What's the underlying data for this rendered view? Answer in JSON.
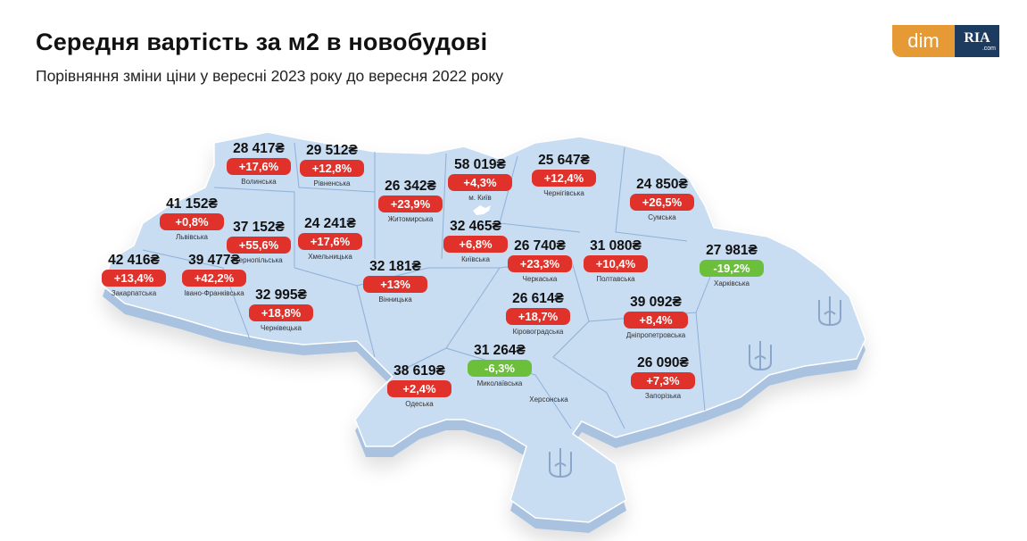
{
  "header": {
    "title": "Середня вартість за м2 в новобудові",
    "subtitle": "Порівняння зміни ціни у вересні 2023 року до вересня 2022 року"
  },
  "logo": {
    "dim": "dim",
    "ria": "RIA",
    "ria_suffix": ".com"
  },
  "colors": {
    "increase": "#e0322b",
    "decrease": "#6cbf3a",
    "map_fill": "#c8dcf2",
    "map_side": "#a9c2e0",
    "map_border": "#8fb0d8"
  },
  "regions": [
    {
      "name": "Волинська",
      "price": "28 417₴",
      "change": "+17,6%",
      "direction": "up"
    },
    {
      "name": "Рівненська",
      "price": "29 512₴",
      "change": "+12,8%",
      "direction": "up"
    },
    {
      "name": "Житомирська",
      "price": "26 342₴",
      "change": "+23,9%",
      "direction": "up"
    },
    {
      "name": "м. Київ",
      "price": "58 019₴",
      "change": "+4,3%",
      "direction": "up"
    },
    {
      "name": "Чернігівська",
      "price": "25 647₴",
      "change": "+12,4%",
      "direction": "up"
    },
    {
      "name": "Сумська",
      "price": "24 850₴",
      "change": "+26,5%",
      "direction": "up"
    },
    {
      "name": "Львівська",
      "price": "41 152₴",
      "change": "+0,8%",
      "direction": "up"
    },
    {
      "name": "Тернопільська",
      "price": "37 152₴",
      "change": "+55,6%",
      "direction": "up"
    },
    {
      "name": "Хмельницька",
      "price": "24 241₴",
      "change": "+17,6%",
      "direction": "up"
    },
    {
      "name": "Київська",
      "price": "32 465₴",
      "change": "+6,8%",
      "direction": "up"
    },
    {
      "name": "Черкаська",
      "price": "26 740₴",
      "change": "+23,3%",
      "direction": "up"
    },
    {
      "name": "Полтавська",
      "price": "31 080₴",
      "change": "+10,4%",
      "direction": "up"
    },
    {
      "name": "Харківська",
      "price": "27 981₴",
      "change": "-19,2%",
      "direction": "down"
    },
    {
      "name": "Закарпатська",
      "price": "42 416₴",
      "change": "+13,4%",
      "direction": "up"
    },
    {
      "name": "Івано-Франківська",
      "price": "39 477₴",
      "change": "+42,2%",
      "direction": "up"
    },
    {
      "name": "Вінницька",
      "price": "32 181₴",
      "change": "+13%",
      "direction": "up"
    },
    {
      "name": "Чернівецька",
      "price": "32 995₴",
      "change": "+18,8%",
      "direction": "up"
    },
    {
      "name": "Кіровоградська",
      "price": "26 614₴",
      "change": "+18,7%",
      "direction": "up"
    },
    {
      "name": "Дніпропетровська",
      "price": "39 092₴",
      "change": "+8,4%",
      "direction": "up"
    },
    {
      "name": "Миколаївська",
      "price": "31 264₴",
      "change": "-6,3%",
      "direction": "down"
    },
    {
      "name": "Одеська",
      "price": "38 619₴",
      "change": "+2,4%",
      "direction": "up"
    },
    {
      "name": "Запорізька",
      "price": "26 090₴",
      "change": "+7,3%",
      "direction": "up"
    },
    {
      "name": "Херсонська"
    }
  ]
}
